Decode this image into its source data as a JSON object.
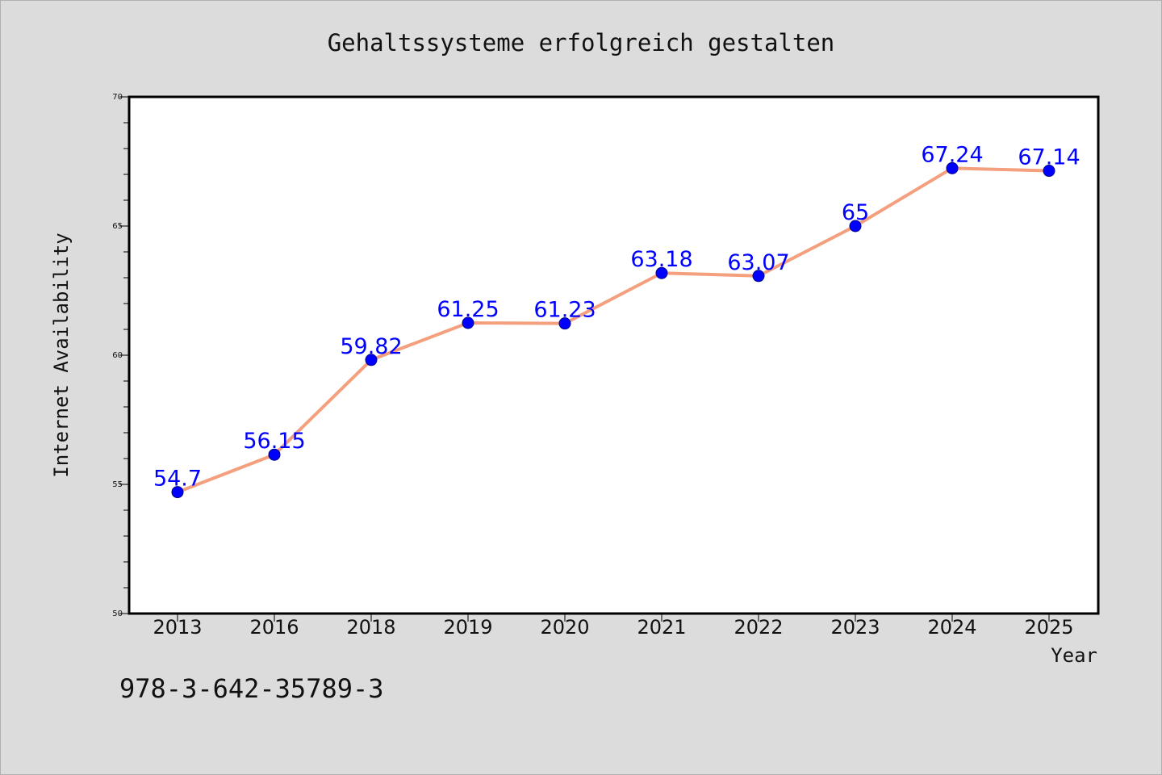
{
  "chart_data": {
    "type": "line",
    "title": "Gehaltssysteme erfolgreich gestalten",
    "xlabel": "Year",
    "ylabel": "Internet Availability",
    "categories": [
      "2013",
      "2016",
      "2018",
      "2019",
      "2020",
      "2021",
      "2022",
      "2023",
      "2024",
      "2025"
    ],
    "series": [
      {
        "values": [
          54.7,
          56.15,
          59.82,
          61.25,
          61.23,
          63.18,
          63.07,
          65,
          67.24,
          67.14
        ],
        "data_labels": [
          "54.7",
          "56.15",
          "59.82",
          "61.25",
          "61.23",
          "63.18",
          "63.07",
          "65",
          "67.24",
          "67.14"
        ],
        "line_color": "#f4a07e",
        "marker_color": "#0000ff",
        "label_color": "#0000ff"
      }
    ],
    "ylim": [
      50,
      70
    ],
    "yticks": [
      "50",
      "55",
      "60",
      "65",
      "70"
    ],
    "grid": false,
    "legend": "none"
  },
  "footer": {
    "isbn": "978-3-642-35789-3"
  },
  "colors": {
    "background": "#dcdcdc",
    "plot_background": "#ffffff"
  }
}
